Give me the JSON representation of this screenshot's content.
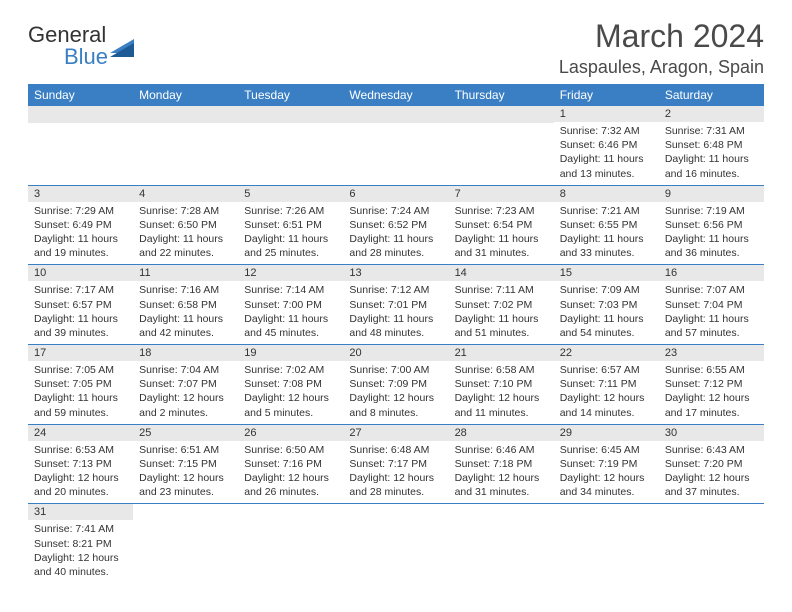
{
  "logo": {
    "part1": "General",
    "part2": "Blue"
  },
  "title": "March 2024",
  "location": "Laspaules, Aragon, Spain",
  "colors": {
    "header_bg": "#3a7fc4",
    "header_text": "#ffffff",
    "daynum_bg": "#e8e8e8",
    "border": "#3a7fc4",
    "text": "#333333"
  },
  "weekdays": [
    "Sunday",
    "Monday",
    "Tuesday",
    "Wednesday",
    "Thursday",
    "Friday",
    "Saturday"
  ],
  "weeks": [
    [
      null,
      null,
      null,
      null,
      null,
      {
        "n": "1",
        "sunrise": "7:32 AM",
        "sunset": "6:46 PM",
        "dl_h": "11",
        "dl_m": "13"
      },
      {
        "n": "2",
        "sunrise": "7:31 AM",
        "sunset": "6:48 PM",
        "dl_h": "11",
        "dl_m": "16"
      }
    ],
    [
      {
        "n": "3",
        "sunrise": "7:29 AM",
        "sunset": "6:49 PM",
        "dl_h": "11",
        "dl_m": "19"
      },
      {
        "n": "4",
        "sunrise": "7:28 AM",
        "sunset": "6:50 PM",
        "dl_h": "11",
        "dl_m": "22"
      },
      {
        "n": "5",
        "sunrise": "7:26 AM",
        "sunset": "6:51 PM",
        "dl_h": "11",
        "dl_m": "25"
      },
      {
        "n": "6",
        "sunrise": "7:24 AM",
        "sunset": "6:52 PM",
        "dl_h": "11",
        "dl_m": "28"
      },
      {
        "n": "7",
        "sunrise": "7:23 AM",
        "sunset": "6:54 PM",
        "dl_h": "11",
        "dl_m": "31"
      },
      {
        "n": "8",
        "sunrise": "7:21 AM",
        "sunset": "6:55 PM",
        "dl_h": "11",
        "dl_m": "33"
      },
      {
        "n": "9",
        "sunrise": "7:19 AM",
        "sunset": "6:56 PM",
        "dl_h": "11",
        "dl_m": "36"
      }
    ],
    [
      {
        "n": "10",
        "sunrise": "7:17 AM",
        "sunset": "6:57 PM",
        "dl_h": "11",
        "dl_m": "39"
      },
      {
        "n": "11",
        "sunrise": "7:16 AM",
        "sunset": "6:58 PM",
        "dl_h": "11",
        "dl_m": "42"
      },
      {
        "n": "12",
        "sunrise": "7:14 AM",
        "sunset": "7:00 PM",
        "dl_h": "11",
        "dl_m": "45"
      },
      {
        "n": "13",
        "sunrise": "7:12 AM",
        "sunset": "7:01 PM",
        "dl_h": "11",
        "dl_m": "48"
      },
      {
        "n": "14",
        "sunrise": "7:11 AM",
        "sunset": "7:02 PM",
        "dl_h": "11",
        "dl_m": "51"
      },
      {
        "n": "15",
        "sunrise": "7:09 AM",
        "sunset": "7:03 PM",
        "dl_h": "11",
        "dl_m": "54"
      },
      {
        "n": "16",
        "sunrise": "7:07 AM",
        "sunset": "7:04 PM",
        "dl_h": "11",
        "dl_m": "57"
      }
    ],
    [
      {
        "n": "17",
        "sunrise": "7:05 AM",
        "sunset": "7:05 PM",
        "dl_h": "11",
        "dl_m": "59"
      },
      {
        "n": "18",
        "sunrise": "7:04 AM",
        "sunset": "7:07 PM",
        "dl_h": "12",
        "dl_m": "2"
      },
      {
        "n": "19",
        "sunrise": "7:02 AM",
        "sunset": "7:08 PM",
        "dl_h": "12",
        "dl_m": "5"
      },
      {
        "n": "20",
        "sunrise": "7:00 AM",
        "sunset": "7:09 PM",
        "dl_h": "12",
        "dl_m": "8"
      },
      {
        "n": "21",
        "sunrise": "6:58 AM",
        "sunset": "7:10 PM",
        "dl_h": "12",
        "dl_m": "11"
      },
      {
        "n": "22",
        "sunrise": "6:57 AM",
        "sunset": "7:11 PM",
        "dl_h": "12",
        "dl_m": "14"
      },
      {
        "n": "23",
        "sunrise": "6:55 AM",
        "sunset": "7:12 PM",
        "dl_h": "12",
        "dl_m": "17"
      }
    ],
    [
      {
        "n": "24",
        "sunrise": "6:53 AM",
        "sunset": "7:13 PM",
        "dl_h": "12",
        "dl_m": "20"
      },
      {
        "n": "25",
        "sunrise": "6:51 AM",
        "sunset": "7:15 PM",
        "dl_h": "12",
        "dl_m": "23"
      },
      {
        "n": "26",
        "sunrise": "6:50 AM",
        "sunset": "7:16 PM",
        "dl_h": "12",
        "dl_m": "26"
      },
      {
        "n": "27",
        "sunrise": "6:48 AM",
        "sunset": "7:17 PM",
        "dl_h": "12",
        "dl_m": "28"
      },
      {
        "n": "28",
        "sunrise": "6:46 AM",
        "sunset": "7:18 PM",
        "dl_h": "12",
        "dl_m": "31"
      },
      {
        "n": "29",
        "sunrise": "6:45 AM",
        "sunset": "7:19 PM",
        "dl_h": "12",
        "dl_m": "34"
      },
      {
        "n": "30",
        "sunrise": "6:43 AM",
        "sunset": "7:20 PM",
        "dl_h": "12",
        "dl_m": "37"
      }
    ],
    [
      {
        "n": "31",
        "sunrise": "7:41 AM",
        "sunset": "8:21 PM",
        "dl_h": "12",
        "dl_m": "40"
      },
      null,
      null,
      null,
      null,
      null,
      null
    ]
  ],
  "labels": {
    "sunrise": "Sunrise: ",
    "sunset": "Sunset: ",
    "daylight": "Daylight: ",
    "hours": " hours",
    "and": "and ",
    "minutes": " minutes."
  }
}
